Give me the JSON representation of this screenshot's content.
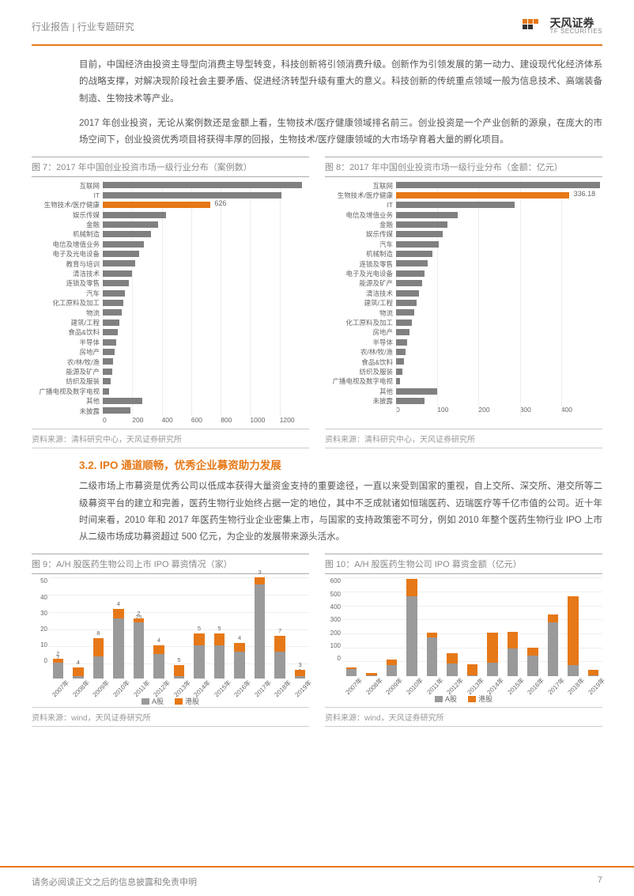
{
  "header": {
    "title": "行业报告 | 行业专题研究",
    "logo_cn": "天风证券",
    "logo_en": "TF SECURITIES"
  },
  "para1": "目前，中国经济由投资主导型向消费主导型转变，科技创新将引领消费升级。创新作为引领发展的第一动力、建设现代化经济体系的战略支撑，对解决现阶段社会主要矛盾、促进经济转型升级有重大的意义。科技创新的传统重点领域一般为信息技术、高端装备制造、生物技术等产业。",
  "para2": "2017 年创业投资，无论从案例数还是金额上看，生物技术/医疗健康领域排名前三。创业投资是一个产业创新的源泉，在庞大的市场空间下，创业投资优秀项目将获得丰厚的回报，生物技术/医疗健康领域的大市场孕育着大量的孵化项目。",
  "section_32": "3.2. IPO 通道顺畅，优秀企业募资助力发展",
  "para3": "二级市场上市募资是优秀公司以低成本获得大量资金支持的重要途径，一直以来受到国家的重视，自上交所、深交所、港交所等二级募资平台的建立和完善，医药生物行业始终占据一定的地位，其中不乏成就诸如恒瑞医药、迈瑞医疗等千亿市值的公司。近十年时间来看，2010 年和 2017 年医药生物行业企业密集上市，与国家的支持政策密不可分，例如 2010 年整个医药生物行业 IPO 上市从二级市场成功募资超过 500 亿元，为企业的发展带来源头活水。",
  "chart7": {
    "title": "图 7：2017 年中国创业投资市场一级行业分布（案例数）",
    "source": "资料来源：清科研究中心，天风证券研究所",
    "type": "hbar",
    "xmax": 1200,
    "xtick": 200,
    "color_default": "#808080",
    "color_highlight": "#e67817",
    "callout": {
      "index": 2,
      "text": "626"
    },
    "categories": [
      "互联网",
      "IT",
      "生物技术/医疗健康",
      "娱乐传媒",
      "金融",
      "机械制造",
      "电信及增值业务",
      "电子及光电设备",
      "教育与培训",
      "清洁技术",
      "连锁及零售",
      "汽车",
      "化工原料及加工",
      "物流",
      "建筑/工程",
      "食品&饮料",
      "半导体",
      "房地产",
      "农/林/牧/渔",
      "能源及矿产",
      "纺织及服装",
      "广播电视及数字电视",
      "其他",
      "未披露"
    ],
    "values": [
      1160,
      1040,
      626,
      370,
      320,
      280,
      240,
      210,
      190,
      170,
      150,
      130,
      120,
      110,
      95,
      88,
      78,
      70,
      62,
      55,
      45,
      38,
      230,
      160
    ]
  },
  "chart8": {
    "title": "图 8：2017 年中国创业投资市场一级行业分布（金额：亿元）",
    "source": "资料来源：清科研究中心，天风证券研究所",
    "type": "hbar",
    "xmax": 400,
    "xtick": 100,
    "color_default": "#808080",
    "color_highlight": "#e67817",
    "callout": {
      "index": 1,
      "text": "336.18"
    },
    "categories": [
      "互联网",
      "生物技术/医疗健康",
      "IT",
      "电信及增值业务",
      "金融",
      "娱乐传媒",
      "汽车",
      "机械制造",
      "连锁及零售",
      "电子及光电设备",
      "能源及矿产",
      "清洁技术",
      "建筑/工程",
      "物流",
      "化工原料及加工",
      "房地产",
      "半导体",
      "农/林/牧/渔",
      "食品&饮料",
      "纺织及服装",
      "广播电视及数字电视",
      "其他",
      "未披露"
    ],
    "values": [
      395,
      336.18,
      230,
      120,
      100,
      90,
      82,
      70,
      62,
      55,
      50,
      44,
      40,
      35,
      30,
      26,
      22,
      18,
      15,
      12,
      8,
      80,
      55
    ]
  },
  "chart9": {
    "title": "图 9：A/H 股医药生物公司上市 IPO 募资情况（家）",
    "source": "资料来源：wind，天风证券研究所",
    "type": "stacked_vbar",
    "ymax": 50,
    "ytick": 10,
    "colors": {
      "a": "#9a9a9a",
      "h": "#e67817"
    },
    "legend_a": "A股",
    "legend_h": "港股",
    "years": [
      "2007年",
      "2008年",
      "2009年",
      "2010年",
      "2011年",
      "2012年",
      "2013年",
      "2014年",
      "2015年",
      "2016年",
      "2017年",
      "2018年",
      "2019年"
    ],
    "a_values": [
      7,
      1,
      10,
      27,
      25,
      11,
      1,
      15,
      15,
      12,
      42,
      12,
      1
    ],
    "h_values": [
      2,
      4,
      8,
      4,
      2,
      4,
      5,
      5,
      5,
      4,
      3,
      7,
      3
    ],
    "a_label_show": [
      true,
      true,
      true,
      true,
      true,
      true,
      true,
      true,
      true,
      true,
      true,
      true,
      true
    ],
    "h_label_show": [
      true,
      true,
      true,
      true,
      true,
      true,
      true,
      true,
      true,
      true,
      true,
      true,
      true
    ]
  },
  "chart10": {
    "title": "图 10：A/H 股医药生物公司 IPO 募资金额（亿元）",
    "source": "资料来源：wind，天风证券研究所",
    "type": "stacked_vbar",
    "ymax": 600,
    "ytick": 100,
    "colors": {
      "a": "#9a9a9a",
      "h": "#e67817"
    },
    "legend_a": "A股",
    "legend_h": "港股",
    "years": [
      "2007年",
      "2008年",
      "2009年",
      "2010年",
      "2011年",
      "2012年",
      "2013年",
      "2014年",
      "2015年",
      "2016年",
      "2017年",
      "2018年",
      "2019年"
    ],
    "a_values": [
      40,
      5,
      60,
      430,
      210,
      70,
      5,
      75,
      150,
      110,
      290,
      60,
      5
    ],
    "h_values": [
      10,
      15,
      30,
      90,
      25,
      55,
      60,
      160,
      90,
      45,
      40,
      370,
      30
    ]
  },
  "footer": {
    "text": "请务必阅读正文之后的信息披露和免责申明",
    "page": "7"
  }
}
